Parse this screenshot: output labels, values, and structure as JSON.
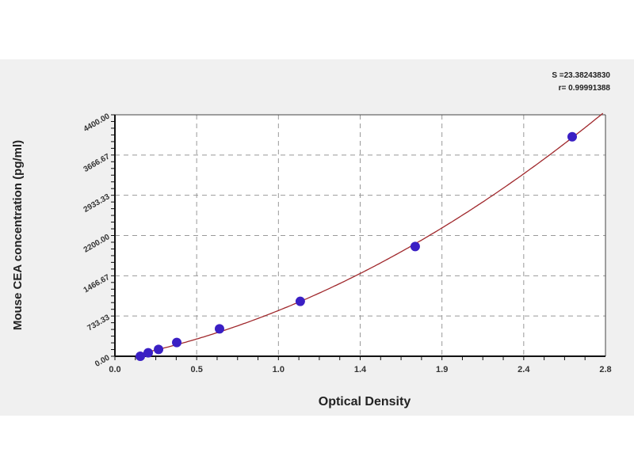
{
  "chart_data": {
    "type": "scatter",
    "title": "",
    "xlabel": "Optical Density",
    "ylabel": "Mouse CEA concentration (pg/ml)",
    "xlim": [
      0,
      2.8
    ],
    "ylim": [
      0,
      4400
    ],
    "x_tick_labels": [
      "0.0",
      "0.5",
      "1.0",
      "1.4",
      "1.9",
      "2.4",
      "2.8"
    ],
    "y_tick_labels": [
      "0.00",
      "733.33",
      "1466.67",
      "2200.00",
      "2933.33",
      "3666.67",
      "4400.00"
    ],
    "grid": true,
    "points": {
      "x": [
        0.145,
        0.19,
        0.249,
        0.353,
        0.597,
        1.058,
        1.714,
        2.61
      ],
      "y": [
        0,
        62.5,
        125,
        250,
        500,
        1000,
        2000,
        4000
      ]
    },
    "fit_curve": true,
    "colors": {
      "points": "#3a1fc4",
      "curve": "#a0282c",
      "grid": "#999999"
    },
    "annotations": [
      "S =23.38243830",
      "r= 0.99991388"
    ]
  }
}
